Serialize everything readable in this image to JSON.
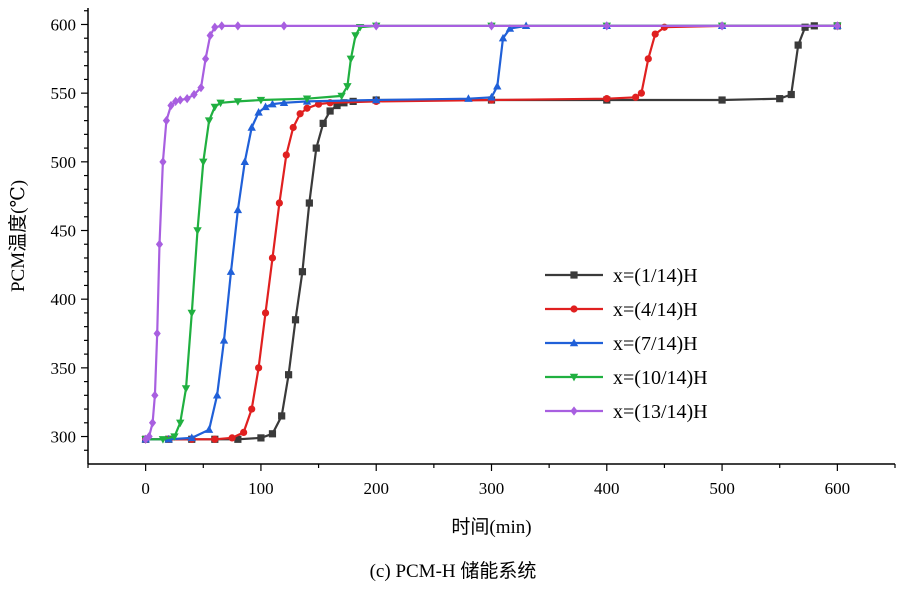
{
  "caption": "(c) PCM-H 储能系统",
  "chart_data": {
    "type": "line",
    "xlabel": "时间(min)",
    "ylabel": "PCM温度(℃)",
    "xlim": [
      -50,
      650
    ],
    "ylim": [
      280,
      612
    ],
    "xticks": [
      0,
      100,
      200,
      300,
      400,
      500,
      600
    ],
    "yticks": [
      300,
      350,
      400,
      450,
      500,
      550,
      600
    ],
    "grid": false,
    "legend_position": "center-right",
    "series": [
      {
        "name": "x=(1/14)H",
        "color": "#3a3a3a",
        "marker": "square",
        "x": [
          0,
          20,
          40,
          60,
          80,
          100,
          110,
          118,
          124,
          130,
          136,
          142,
          148,
          154,
          160,
          166,
          172,
          180,
          200,
          300,
          400,
          500,
          550,
          560,
          566,
          572,
          580,
          600
        ],
        "y": [
          298,
          298,
          298,
          298,
          298,
          299,
          302,
          315,
          345,
          385,
          420,
          470,
          510,
          528,
          537,
          541,
          543,
          544,
          545,
          545,
          545,
          545,
          546,
          549,
          585,
          598,
          599,
          599
        ]
      },
      {
        "name": "x=(4/14)H",
        "color": "#e02020",
        "marker": "circle",
        "x": [
          0,
          20,
          40,
          60,
          75,
          85,
          92,
          98,
          104,
          110,
          116,
          122,
          128,
          134,
          140,
          150,
          160,
          200,
          300,
          400,
          425,
          430,
          436,
          442,
          450,
          500,
          600
        ],
        "y": [
          298,
          298,
          298,
          298,
          299,
          303,
          320,
          350,
          390,
          430,
          470,
          505,
          525,
          535,
          539,
          542,
          543,
          544,
          545,
          546,
          547,
          550,
          575,
          593,
          598,
          599,
          599
        ]
      },
      {
        "name": "x=(7/14)H",
        "color": "#2060d8",
        "marker": "triangle-up",
        "x": [
          0,
          20,
          40,
          55,
          62,
          68,
          74,
          80,
          86,
          92,
          98,
          104,
          110,
          120,
          140,
          200,
          280,
          300,
          305,
          310,
          316,
          330,
          400,
          500,
          600
        ],
        "y": [
          298,
          298,
          299,
          305,
          330,
          370,
          420,
          465,
          500,
          525,
          536,
          540,
          542,
          543,
          544,
          545,
          546,
          547,
          555,
          590,
          597,
          599,
          599,
          599,
          599
        ]
      },
      {
        "name": "x=(10/14)H",
        "color": "#20b040",
        "marker": "triangle-down",
        "x": [
          0,
          15,
          25,
          30,
          35,
          40,
          45,
          50,
          55,
          60,
          65,
          80,
          100,
          140,
          170,
          175,
          178,
          182,
          186,
          200,
          300,
          400,
          500,
          600
        ],
        "y": [
          298,
          298,
          300,
          310,
          335,
          390,
          450,
          500,
          530,
          540,
          543,
          544,
          545,
          546,
          548,
          555,
          575,
          592,
          598,
          599,
          599,
          599,
          599,
          599
        ]
      },
      {
        "name": "x=(13/14)H",
        "color": "#a85fe0",
        "marker": "diamond",
        "x": [
          0,
          3,
          6,
          8,
          10,
          12,
          15,
          18,
          22,
          26,
          30,
          36,
          42,
          48,
          52,
          56,
          60,
          66,
          80,
          120,
          200,
          300,
          400,
          500,
          600
        ],
        "y": [
          298,
          300,
          310,
          330,
          375,
          440,
          500,
          530,
          541,
          544,
          545,
          546,
          549,
          554,
          575,
          592,
          598,
          599,
          599,
          599,
          599,
          599,
          599,
          599,
          599
        ]
      }
    ]
  }
}
